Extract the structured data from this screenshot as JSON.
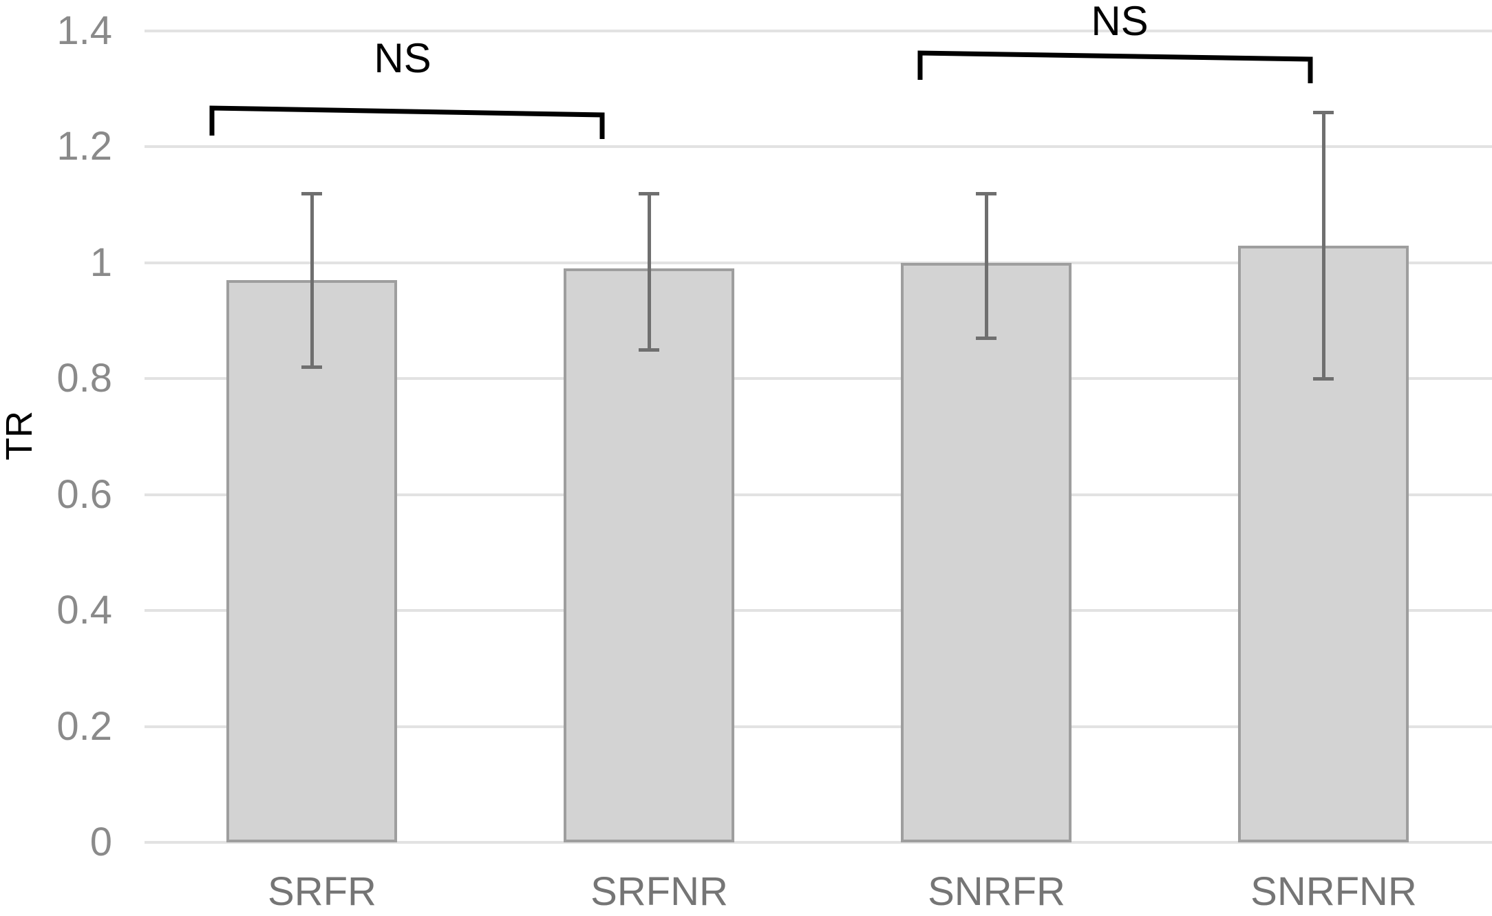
{
  "chart_data": {
    "type": "bar",
    "title": "",
    "xlabel": "",
    "ylabel": "TR",
    "categories": [
      "SRFR",
      "SRFNR",
      "SNRFR",
      "SNRFNR"
    ],
    "values": [
      0.97,
      0.99,
      1.0,
      1.03
    ],
    "error_low": [
      0.82,
      0.85,
      0.87,
      0.8
    ],
    "error_high": [
      1.12,
      1.12,
      1.12,
      1.26
    ],
    "ylim": [
      0,
      1.4
    ],
    "ytick_labels": [
      "1.4",
      "1.2",
      "1",
      "0.8",
      "0.6",
      "0.4",
      "0.2",
      "0"
    ],
    "ytick_values": [
      1.4,
      1.2,
      1.0,
      0.8,
      0.6,
      0.4,
      0.2,
      0
    ],
    "grid": true,
    "legend": "none",
    "annotations": [
      {
        "label": "NS",
        "between": [
          "SRFR",
          "SRFNR"
        ]
      },
      {
        "label": "NS",
        "between": [
          "SNRFR",
          "SNRFNR"
        ]
      }
    ],
    "colors": {
      "bar_fill": "#d3d3d3",
      "bar_border": "#9e9e9e",
      "error_bar": "#6f6f6f",
      "gridline": "#e2e2e2",
      "tick_label": "#8a8a8a",
      "category_label": "#757575",
      "annotation": "#000000"
    }
  }
}
